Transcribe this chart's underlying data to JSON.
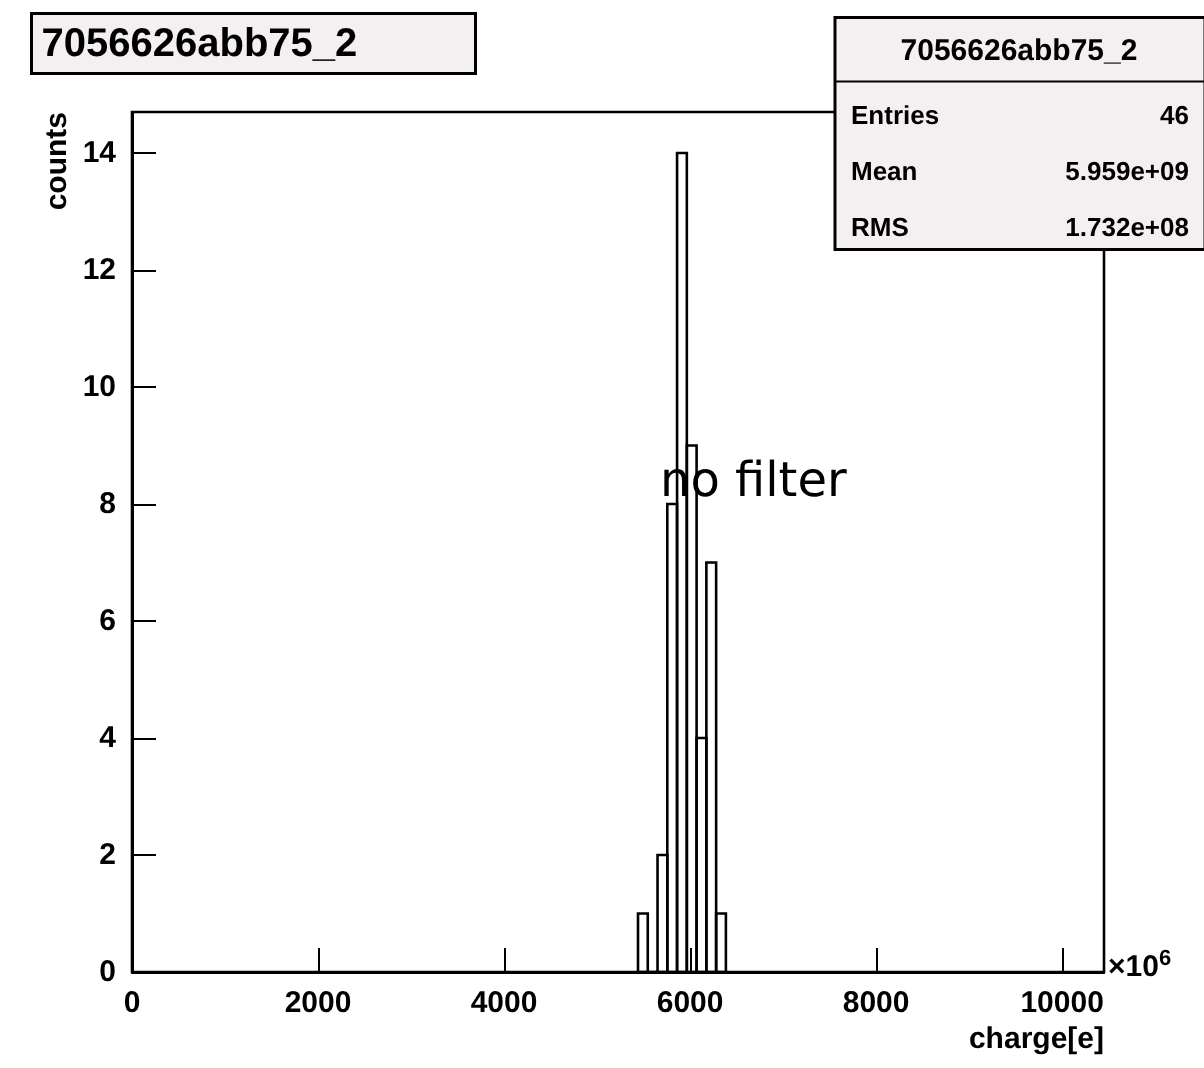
{
  "chart_data": {
    "type": "histogram",
    "title": "7056626abb75_2",
    "xlabel": "charge[e]",
    "ylabel": "counts",
    "bins": [
      5440,
      5545,
      5650,
      5755,
      5860,
      5965,
      6070,
      6175,
      6280,
      6385
    ],
    "values": [
      1,
      0,
      2,
      8,
      14,
      9,
      4,
      7,
      1
    ],
    "color": "#000000",
    "xlim": [
      0,
      10450
    ],
    "xticks": [
      0,
      2000,
      4000,
      6000,
      8000,
      10000
    ],
    "ylim": [
      0,
      14.7
    ],
    "yticks": [
      0,
      2,
      4,
      6,
      8,
      10,
      12,
      14
    ],
    "grid": false,
    "annotations": [
      "7056626abb75_2",
      "Entries 46",
      "Mean 5.959e+09",
      "RMS 1.732e+08",
      "no filter",
      "×10$^{6}$"
    ]
  }
}
